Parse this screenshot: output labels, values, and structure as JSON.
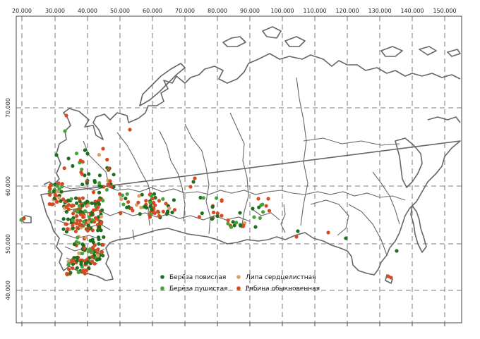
{
  "map": {
    "x_ticks": [
      "20.000",
      "30.000",
      "40.000",
      "50.000",
      "60.000",
      "70.000",
      "80.000",
      "90.000",
      "100.000",
      "110.000",
      "120.000",
      "130.000",
      "140.000",
      "150.000"
    ],
    "y_ticks": [
      "70.000",
      "60.000",
      "50.000",
      "40.000"
    ],
    "colors": {
      "betula_pendula": "#1f6e1f",
      "betula_pubescens": "#49a13b",
      "tilia_cordata": "#d9a066",
      "sorbus_aucuparia": "#d64a22"
    },
    "legend": [
      {
        "label": "Берёза повислая",
        "color_key": "betula_pendula",
        "icon": "dot-marker-icon"
      },
      {
        "label": "Берёза пушистая",
        "color_key": "betula_pubescens",
        "icon": "dot-marker-icon"
      },
      {
        "label": "Липа сердцелистная",
        "color_key": "tilia_cordata",
        "icon": "dot-marker-icon"
      },
      {
        "label": "Рябина обыкновенная",
        "color_key": "sorbus_aucuparia",
        "icon": "dot-marker-icon"
      }
    ]
  }
}
